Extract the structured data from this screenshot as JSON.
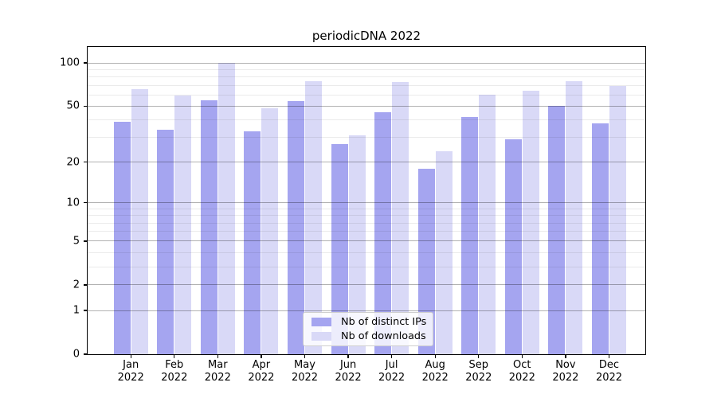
{
  "title": "periodicDNA 2022",
  "chart_data": {
    "type": "bar",
    "title": "periodicDNA 2022",
    "categories": [
      "Jan",
      "Feb",
      "Mar",
      "Apr",
      "May",
      "Jun",
      "Jul",
      "Aug",
      "Sep",
      "Oct",
      "Nov",
      "Dec"
    ],
    "year_label": "2022",
    "series": [
      {
        "name": "Nb of distinct IPs",
        "color": "#a5a5f0",
        "values": [
          39,
          34,
          55,
          33,
          54,
          27,
          45,
          18,
          42,
          29,
          50,
          38
        ]
      },
      {
        "name": "Nb of downloads",
        "color": "#d9d9f7",
        "values": [
          66,
          59,
          100,
          48,
          75,
          31,
          74,
          24,
          60,
          64,
          75,
          69
        ]
      }
    ],
    "xlabel": "",
    "ylabel": "",
    "yscale": "symlog",
    "y_major_ticks": [
      0,
      1,
      2,
      5,
      10,
      20,
      50,
      100
    ],
    "y_minor_ticks": [
      3,
      4,
      6,
      7,
      8,
      9,
      30,
      40,
      60,
      70,
      80,
      90
    ],
    "ylim": [
      0,
      129
    ],
    "grid": true,
    "legend_position": "lower center",
    "background_color": "#ffffff",
    "axis_color": "#000000"
  }
}
